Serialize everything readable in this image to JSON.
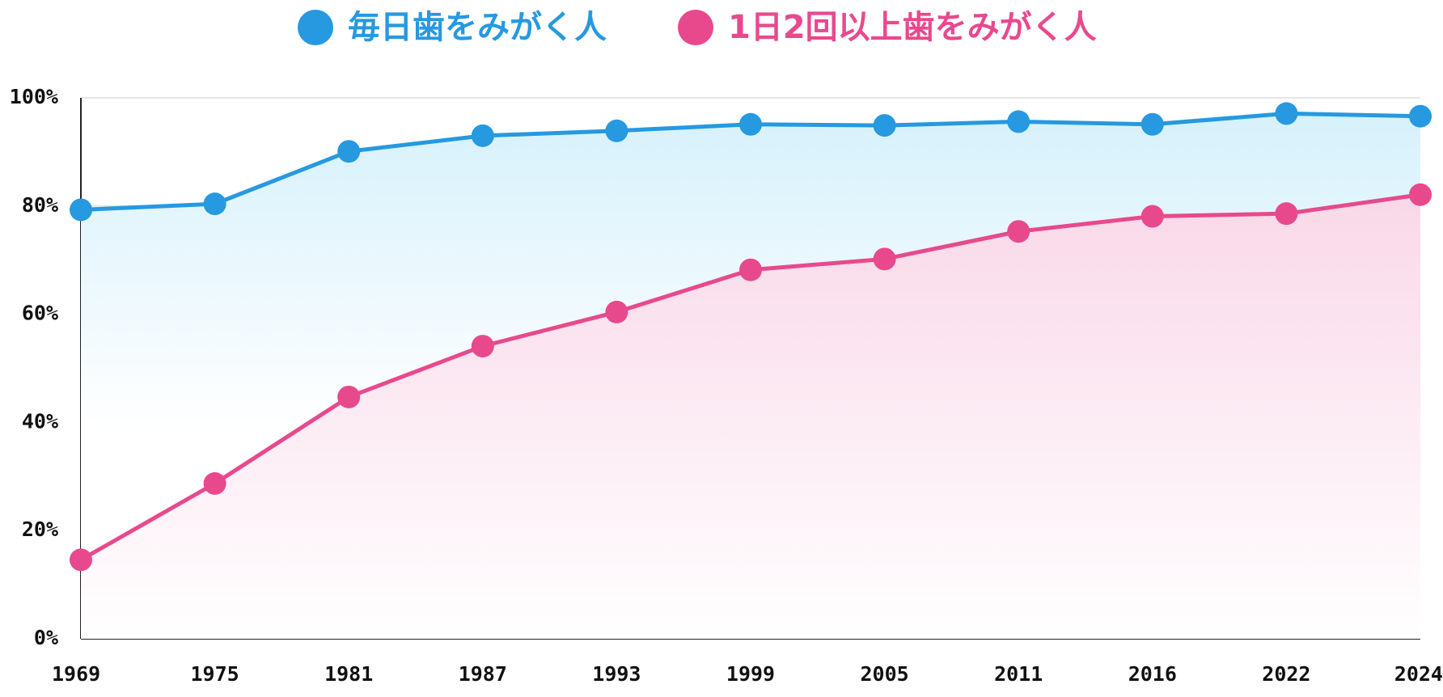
{
  "chart_data": {
    "type": "line",
    "categories": [
      "1969",
      "1975",
      "1981",
      "1987",
      "1993",
      "1999",
      "2005",
      "2011",
      "2016",
      "2022",
      "2024"
    ],
    "series": [
      {
        "name": "毎日歯をみがく人",
        "color": "#2699e0",
        "values": [
          79.3,
          80.4,
          90.1,
          93.0,
          93.9,
          95.1,
          94.9,
          95.6,
          95.1,
          97.1,
          96.6
        ]
      },
      {
        "name": "1日2回以上歯をみがく人",
        "color": "#e8498d",
        "values": [
          14.6,
          28.7,
          44.7,
          54.1,
          60.4,
          68.2,
          70.2,
          75.3,
          78.1,
          78.6,
          82.1
        ]
      }
    ],
    "ylim": [
      0,
      100
    ],
    "yticks": [
      {
        "value": 0,
        "label": "0%"
      },
      {
        "value": 20,
        "label": "20%"
      },
      {
        "value": 40,
        "label": "40%"
      },
      {
        "value": 60,
        "label": "60%"
      },
      {
        "value": 80,
        "label": "80%"
      },
      {
        "value": 100,
        "label": "100%"
      }
    ],
    "grid": true
  }
}
